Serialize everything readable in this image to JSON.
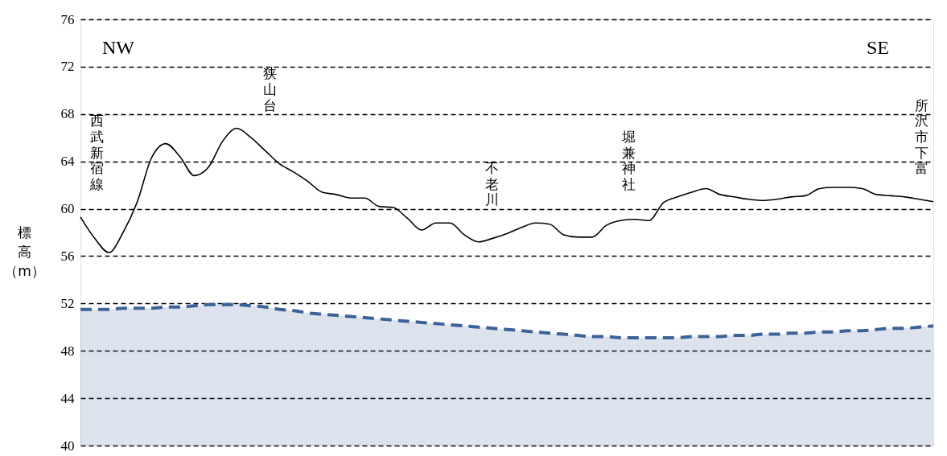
{
  "chart_data": {
    "type": "line",
    "ylabel": "標高（m）",
    "annotations": [
      "NW",
      "SE",
      "西武新宿線",
      "狭山台",
      "不老川",
      "堀兼神社",
      "所沢市下富"
    ],
    "categories": [
      null,
      null,
      null,
      null,
      null,
      null,
      null,
      null,
      null,
      null,
      null,
      null,
      null,
      null,
      null,
      null,
      null,
      null,
      null,
      null,
      null,
      null,
      null,
      null,
      null,
      null,
      null,
      null,
      null,
      null,
      null,
      null,
      null,
      null,
      null,
      null,
      null,
      null,
      null,
      null,
      null,
      null,
      null,
      null,
      null,
      null,
      null,
      null,
      null,
      null,
      null,
      null,
      null,
      null,
      null,
      null,
      null,
      null,
      null,
      null,
      null
    ],
    "series": [
      {
        "type": "area",
        "color": "#3b6399",
        "line_style": "dashed",
        "values": [
          51.5,
          51.5,
          51.5,
          51.6,
          51.6,
          51.6,
          51.7,
          51.7,
          51.8,
          51.9,
          51.9,
          51.9,
          51.8,
          51.7,
          51.5,
          51.4,
          51.2,
          51.1,
          51.0,
          50.9,
          50.8,
          50.7,
          50.6,
          50.5,
          50.4,
          50.3,
          50.2,
          50.1,
          50.0,
          49.9,
          49.8,
          49.7,
          49.6,
          49.5,
          49.4,
          49.3,
          49.2,
          49.2,
          49.1,
          49.1,
          49.1,
          49.1,
          49.1,
          49.2,
          49.2,
          49.2,
          49.3,
          49.3,
          49.4,
          49.4,
          49.5,
          49.5,
          49.6,
          49.6,
          49.7,
          49.7,
          49.8,
          49.9,
          49.9,
          50.0,
          50.1
        ]
      },
      {
        "type": "line",
        "color": "#000000",
        "line_style": "solid",
        "values": [
          59.3,
          57.5,
          56.3,
          58.0,
          60.6,
          64.3,
          65.5,
          64.4,
          62.8,
          63.5,
          65.7,
          66.8,
          66.0,
          64.9,
          63.8,
          63.1,
          62.3,
          61.4,
          61.2,
          60.9,
          60.9,
          60.2,
          60.1,
          59.2,
          58.2,
          58.8,
          58.8,
          57.8,
          57.2,
          57.5,
          57.9,
          58.4,
          58.8,
          58.7,
          57.8,
          57.6,
          57.6,
          58.6,
          59.0,
          59.1,
          59.0,
          60.5,
          61.0,
          61.4,
          61.7,
          61.2,
          61.0,
          60.8,
          60.7,
          60.8,
          61.0,
          61.1,
          61.7,
          61.8,
          61.8,
          61.7,
          61.2,
          61.1,
          61.0,
          60.8,
          60.6
        ]
      }
    ],
    "ylim": [
      40,
      76
    ],
    "yticks": [
      40,
      44,
      48,
      52,
      56,
      60,
      64,
      68,
      72,
      76
    ],
    "grid": "y"
  }
}
